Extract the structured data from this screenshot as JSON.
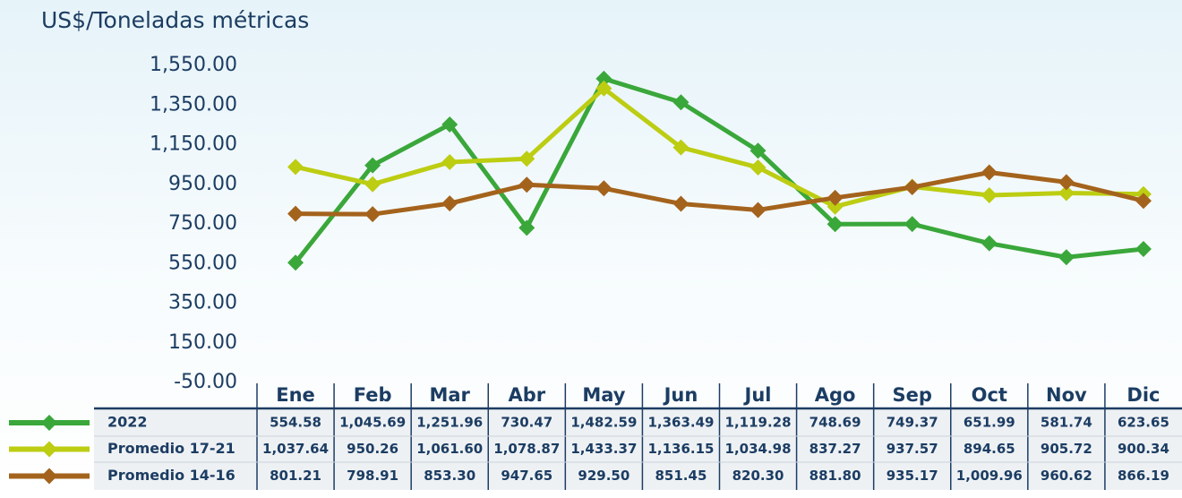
{
  "chart_data": {
    "type": "line",
    "y_axis_label": "US$/Toneladas métricas",
    "categories": [
      "Ene",
      "Feb",
      "Mar",
      "Abr",
      "May",
      "Jun",
      "Jul",
      "Ago",
      "Sep",
      "Oct",
      "Nov",
      "Dic"
    ],
    "series": [
      {
        "name": "2022",
        "color": "#3aa73a",
        "values": [
          554.58,
          1045.69,
          1251.96,
          730.47,
          1482.59,
          1363.49,
          1119.28,
          748.69,
          749.37,
          651.99,
          581.74,
          623.65
        ],
        "value_labels": [
          "554.58",
          "1,045.69",
          "1,251.96",
          "730.47",
          "1,482.59",
          "1,363.49",
          "1,119.28",
          "748.69",
          "749.37",
          "651.99",
          "581.74",
          "623.65"
        ]
      },
      {
        "name": "Promedio 17-21",
        "color": "#bccd12",
        "values": [
          1037.64,
          950.26,
          1061.6,
          1078.87,
          1433.37,
          1136.15,
          1034.98,
          837.27,
          937.57,
          894.65,
          905.72,
          900.34
        ],
        "value_labels": [
          "1,037.64",
          "950.26",
          "1,061.60",
          "1,078.87",
          "1,433.37",
          "1,136.15",
          "1,034.98",
          "837.27",
          "937.57",
          "894.65",
          "905.72",
          "900.34"
        ]
      },
      {
        "name": "Promedio 14-16",
        "color": "#a4631c",
        "values": [
          801.21,
          798.91,
          853.3,
          947.65,
          929.5,
          851.45,
          820.3,
          881.8,
          935.17,
          1009.96,
          960.62,
          866.19
        ],
        "value_labels": [
          "801.21",
          "798.91",
          "853.30",
          "947.65",
          "929.50",
          "851.45",
          "820.30",
          "881.80",
          "935.17",
          "1,009.96",
          "960.62",
          "866.19"
        ]
      }
    ],
    "ylim": [
      -50,
      1550
    ],
    "yticks": [
      {
        "value": -50,
        "label": "-50.00"
      },
      {
        "value": 150,
        "label": "150.00"
      },
      {
        "value": 350,
        "label": "350.00"
      },
      {
        "value": 550,
        "label": "550.00"
      },
      {
        "value": 750,
        "label": "750.00"
      },
      {
        "value": 950,
        "label": "950.00"
      },
      {
        "value": 1150,
        "label": "1,150.00"
      },
      {
        "value": 1350,
        "label": "1,350.00"
      },
      {
        "value": 1550,
        "label": "1,550.00"
      }
    ]
  }
}
